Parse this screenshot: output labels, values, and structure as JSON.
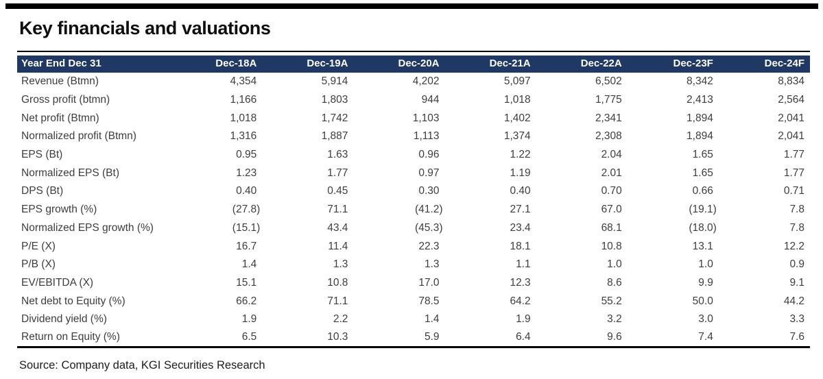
{
  "title": "Key financials and valuations",
  "source_note": "Source: Company data, KGI Securities Research",
  "colors": {
    "header_bg": "#1f3864",
    "header_text": "#ffffff",
    "rule": "#000000",
    "body_text": "#3d3d3d"
  },
  "chart_data": {
    "type": "table",
    "title": "Key financials and valuations",
    "columns": [
      "Year End Dec 31",
      "Dec-18A",
      "Dec-19A",
      "Dec-20A",
      "Dec-21A",
      "Dec-22A",
      "Dec-23F",
      "Dec-24F"
    ],
    "rows": [
      {
        "label": "Revenue (Btmn)",
        "values": [
          "4,354",
          "5,914",
          "4,202",
          "5,097",
          "6,502",
          "8,342",
          "8,834"
        ]
      },
      {
        "label": "Gross profit (btmn)",
        "values": [
          "1,166",
          "1,803",
          "944",
          "1,018",
          "1,775",
          "2,413",
          "2,564"
        ]
      },
      {
        "label": "Net profit (Btmn)",
        "values": [
          "1,018",
          "1,742",
          "1,103",
          "1,402",
          "2,341",
          "1,894",
          "2,041"
        ]
      },
      {
        "label": "Normalized profit (Btmn)",
        "values": [
          "1,316",
          "1,887",
          "1,113",
          "1,374",
          "2,308",
          "1,894",
          "2,041"
        ]
      },
      {
        "label": "EPS (Bt)",
        "values": [
          "0.95",
          "1.63",
          "0.96",
          "1.22",
          "2.04",
          "1.65",
          "1.77"
        ]
      },
      {
        "label": "Normalized EPS (Bt)",
        "values": [
          "1.23",
          "1.77",
          "0.97",
          "1.19",
          "2.01",
          "1.65",
          "1.77"
        ]
      },
      {
        "label": "DPS (Bt)",
        "values": [
          "0.40",
          "0.45",
          "0.30",
          "0.40",
          "0.70",
          "0.66",
          "0.71"
        ]
      },
      {
        "label": "EPS growth (%)",
        "values": [
          "(27.8)",
          "71.1",
          "(41.2)",
          "27.1",
          "67.0",
          "(19.1)",
          "7.8"
        ]
      },
      {
        "label": "Normalized EPS growth (%)",
        "values": [
          "(15.1)",
          "43.4",
          "(45.3)",
          "23.4",
          "68.1",
          "(18.0)",
          "7.8"
        ]
      },
      {
        "label": "P/E (X)",
        "values": [
          "16.7",
          "11.4",
          "22.3",
          "18.1",
          "10.8",
          "13.1",
          "12.2"
        ]
      },
      {
        "label": "P/B (X)",
        "values": [
          "1.4",
          "1.3",
          "1.3",
          "1.1",
          "1.0",
          "1.0",
          "0.9"
        ]
      },
      {
        "label": "EV/EBITDA (X)",
        "values": [
          "15.1",
          "10.8",
          "17.0",
          "12.3",
          "8.6",
          "9.9",
          "9.1"
        ]
      },
      {
        "label": "Net debt to Equity (%)",
        "values": [
          "66.2",
          "71.1",
          "78.5",
          "64.2",
          "55.2",
          "50.0",
          "44.2"
        ]
      },
      {
        "label": "Dividend yield (%)",
        "values": [
          "1.9",
          "2.2",
          "1.4",
          "1.9",
          "3.2",
          "3.0",
          "3.3"
        ]
      },
      {
        "label": "Return on Equity (%)",
        "values": [
          "6.5",
          "10.3",
          "5.9",
          "6.4",
          "9.6",
          "7.4",
          "7.6"
        ]
      }
    ]
  }
}
